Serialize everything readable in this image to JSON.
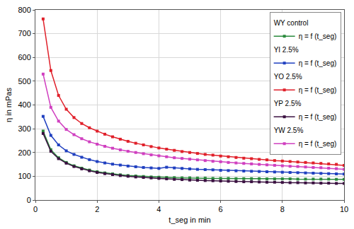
{
  "chart_data": {
    "type": "line",
    "x_label": "t_seg in min",
    "y_label": "η in mPas",
    "x": [
      0.25,
      0.5,
      0.75,
      1,
      1.25,
      1.5,
      1.75,
      2,
      2.25,
      2.5,
      2.75,
      3,
      3.25,
      3.5,
      3.75,
      4,
      4.25,
      4.5,
      4.75,
      5,
      5.25,
      5.5,
      5.75,
      6,
      6.25,
      6.5,
      6.75,
      7,
      7.25,
      7.5,
      7.75,
      8,
      8.25,
      8.5,
      8.75,
      9,
      9.25,
      9.5,
      9.75,
      10
    ],
    "series": [
      {
        "group": "WY control",
        "name": "η = f (t_seg)",
        "color": "#2a8a3c",
        "values": [
          290,
          212,
          178,
          158,
          144,
          134,
          126,
          119,
          114,
          110,
          106,
          103,
          101,
          99,
          97,
          96,
          95,
          94,
          93,
          93,
          92,
          92,
          91,
          91,
          91,
          90,
          90,
          90,
          90,
          89,
          89,
          89,
          89,
          88,
          88,
          88,
          88,
          88,
          87,
          87
        ]
      },
      {
        "group": "YI 2.5%",
        "name": "η = f (t_seg)",
        "color": "#2040c0",
        "values": [
          352,
          272,
          232,
          207,
          192,
          180,
          170,
          162,
          156,
          151,
          147,
          143,
          140,
          137,
          135,
          133,
          138,
          135,
          133,
          131,
          129,
          128,
          127,
          125,
          124,
          123,
          122,
          121,
          120,
          119,
          118,
          117,
          116,
          115,
          114,
          113,
          112,
          111,
          110,
          109
        ]
      },
      {
        "group": "YO 2.5%",
        "name": "η = f (t_seg)",
        "color": "#e0202a",
        "values": [
          762,
          545,
          440,
          382,
          347,
          322,
          304,
          290,
          277,
          266,
          256,
          247,
          239,
          232,
          225,
          219,
          214,
          209,
          204,
          200,
          196,
          192,
          189,
          185,
          182,
          179,
          176,
          174,
          171,
          169,
          166,
          164,
          162,
          160,
          158,
          156,
          154,
          152,
          150,
          146
        ]
      },
      {
        "group": "YP 2.5%",
        "name": "η = f (t_seg)",
        "color": "#3a1040",
        "values": [
          280,
          205,
          174,
          155,
          141,
          131,
          123,
          116,
          111,
          107,
          103,
          100,
          97,
          95,
          93,
          91,
          89,
          87,
          86,
          84,
          83,
          82,
          81,
          80,
          79,
          78,
          77,
          77,
          76,
          75,
          75,
          74,
          73,
          73,
          72,
          72,
          71,
          71,
          70,
          70
        ]
      },
      {
        "group": "YW 2.5%",
        "name": "η = f (t_seg)",
        "color": "#d040c0",
        "values": [
          530,
          390,
          332,
          297,
          275,
          258,
          245,
          235,
          226,
          218,
          211,
          205,
          200,
          195,
          190,
          186,
          182,
          178,
          175,
          172,
          169,
          166,
          163,
          161,
          158,
          156,
          154,
          152,
          150,
          148,
          146,
          144,
          142,
          141,
          139,
          137,
          136,
          134,
          132,
          129
        ]
      }
    ],
    "xlim": [
      0,
      10
    ],
    "xticks": [
      0,
      2,
      4,
      6,
      8,
      10
    ],
    "ylim": [
      0,
      800
    ],
    "yticks": [
      0,
      100,
      200,
      300,
      400,
      500,
      600,
      700,
      800
    ],
    "grid": true,
    "legend": "top right",
    "marker": "square",
    "line_style": "solid"
  }
}
